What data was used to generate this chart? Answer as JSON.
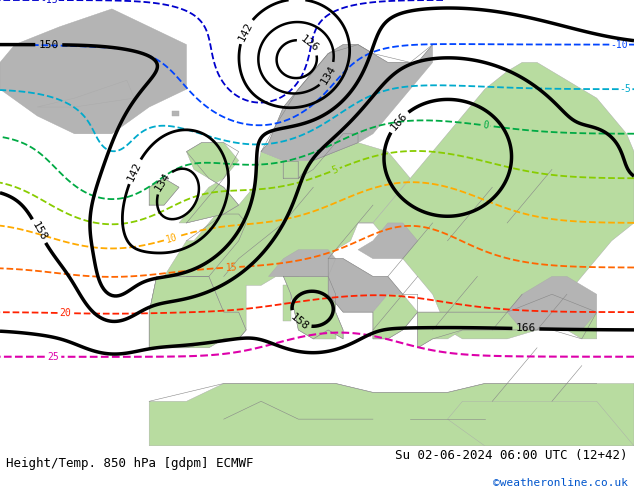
{
  "title_left": "Height/Temp. 850 hPa [gdpm] ECMWF",
  "title_right": "Su 02-06-2024 06:00 UTC (12+42)",
  "watermark": "©weatheronline.co.uk",
  "bg_color": "#ffffff",
  "land_color_green": "#b8dca0",
  "land_color_grey": "#b4b4b4",
  "sea_color": "#e8e8e8",
  "border_color": "#aaaaaa",
  "font_size_title": 9,
  "font_size_watermark": 8,
  "map_xlim": [
    -30,
    55
  ],
  "map_ylim": [
    25,
    75
  ]
}
